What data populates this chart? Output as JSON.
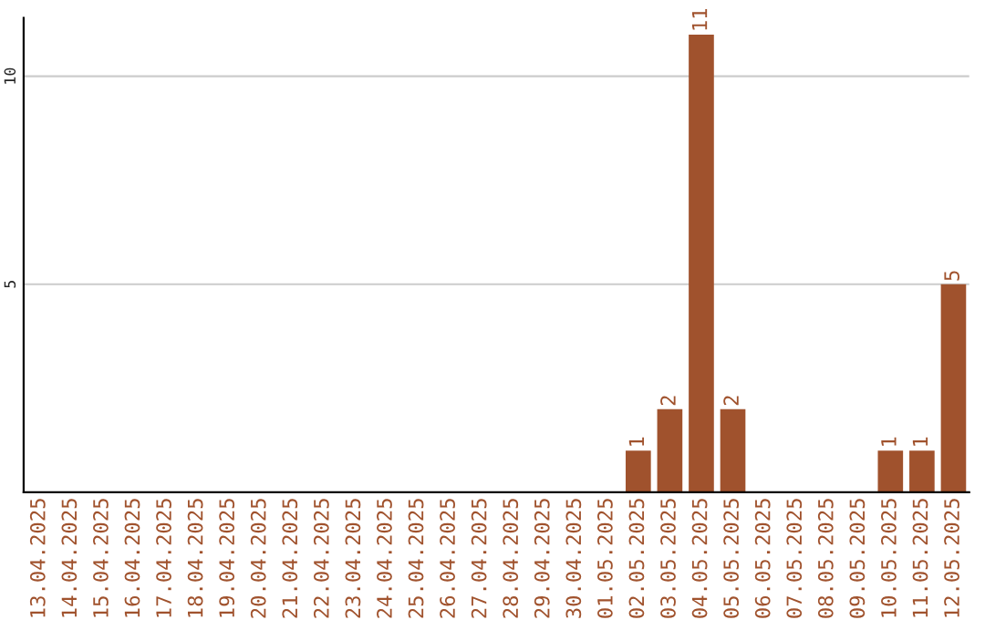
{
  "chart_data": {
    "type": "bar",
    "categories": [
      "13.04.2025",
      "14.04.2025",
      "15.04.2025",
      "16.04.2025",
      "17.04.2025",
      "18.04.2025",
      "19.04.2025",
      "20.04.2025",
      "21.04.2025",
      "22.04.2025",
      "23.04.2025",
      "24.04.2025",
      "25.04.2025",
      "26.04.2025",
      "27.04.2025",
      "28.04.2025",
      "29.04.2025",
      "30.04.2025",
      "01.05.2025",
      "02.05.2025",
      "03.05.2025",
      "04.05.2025",
      "05.05.2025",
      "06.05.2025",
      "07.05.2025",
      "08.05.2025",
      "09.05.2025",
      "10.05.2025",
      "11.05.2025",
      "12.05.2025"
    ],
    "values": [
      0,
      0,
      0,
      0,
      0,
      0,
      0,
      0,
      0,
      0,
      0,
      0,
      0,
      0,
      0,
      0,
      0,
      0,
      0,
      1,
      2,
      11,
      2,
      0,
      0,
      0,
      0,
      1,
      1,
      5
    ],
    "value_labels": [
      null,
      null,
      null,
      null,
      null,
      null,
      null,
      null,
      null,
      null,
      null,
      null,
      null,
      null,
      null,
      null,
      null,
      null,
      null,
      "1",
      "2",
      "11",
      "2",
      null,
      null,
      null,
      null,
      "1",
      "1",
      "5"
    ],
    "color": "#a0522d",
    "ylim": [
      0,
      11.4
    ],
    "yticks": [
      5,
      10
    ],
    "grid": "y",
    "legend": false
  }
}
